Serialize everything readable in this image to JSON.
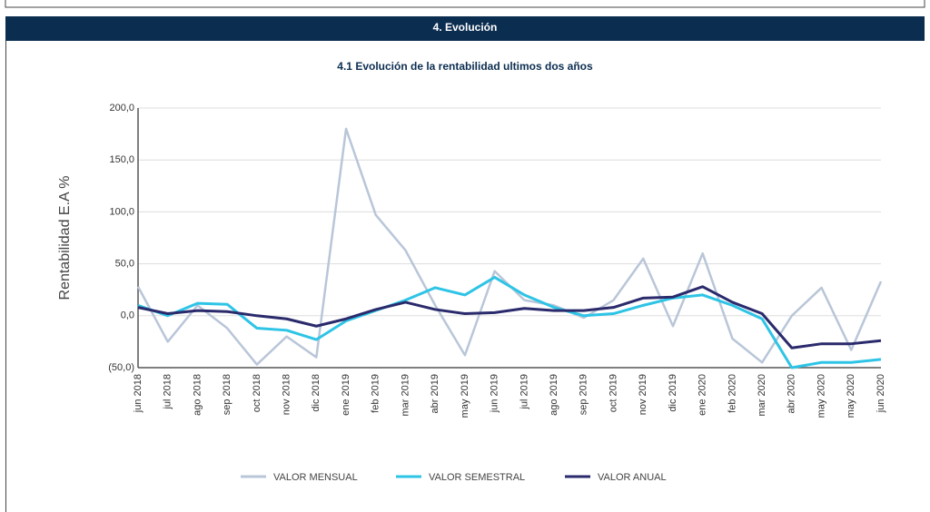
{
  "header": {
    "title": "4. Evolución"
  },
  "chart_data": {
    "type": "line",
    "title": "4.1 Evolución de la rentabilidad ultimos dos años",
    "y_label": "Rentabilidad E.A %",
    "categories": [
      "jun 2018",
      "jul 2018",
      "ago 2018",
      "sep 2018",
      "oct 2018",
      "nov 2018",
      "dic 2018",
      "ene 2019",
      "feb 2019",
      "mar 2019",
      "abr 2019",
      "may 2019",
      "jun 2019",
      "jul 2019",
      "ago 2019",
      "sep 2019",
      "oct 2019",
      "nov 2019",
      "dic 2019",
      "ene 2020",
      "feb 2020",
      "mar 2020",
      "abr 2020",
      "may 2020",
      "may 2020",
      "jun 2020"
    ],
    "series": [
      {
        "name": "VALOR MENSUAL",
        "color": "#b9c6d8",
        "values": [
          28,
          -25,
          10,
          -12,
          -47,
          -20,
          -40,
          180,
          97,
          63,
          10,
          -38,
          43,
          15,
          10,
          -2,
          15,
          55,
          -10,
          60,
          -22,
          -45,
          0,
          27,
          -33,
          33
        ]
      },
      {
        "name": "VALOR SEMESTRAL",
        "color": "#2ec4e6",
        "values": [
          10,
          0,
          12,
          11,
          -12,
          -14,
          -23,
          -5,
          5,
          15,
          27,
          20,
          37,
          20,
          8,
          0,
          2,
          10,
          17,
          20,
          10,
          -3,
          -50,
          -45,
          -45,
          -42
        ]
      },
      {
        "name": "VALOR ANUAL",
        "color": "#2a2a6c",
        "values": [
          8,
          2,
          5,
          4,
          0,
          -3,
          -10,
          -3,
          6,
          13,
          6,
          2,
          3,
          7,
          5,
          5,
          8,
          17,
          18,
          28,
          13,
          2,
          -31,
          -27,
          -27,
          -24
        ]
      }
    ],
    "ylim": [
      -50,
      200
    ],
    "yticks": [
      {
        "value": -50,
        "label": "(50,0)"
      },
      {
        "value": 0,
        "label": "0,0"
      },
      {
        "value": 50,
        "label": "50,0"
      },
      {
        "value": 100,
        "label": "100,0"
      },
      {
        "value": 150,
        "label": "150,0"
      },
      {
        "value": 200,
        "label": "200,0"
      }
    ],
    "grid": true
  }
}
